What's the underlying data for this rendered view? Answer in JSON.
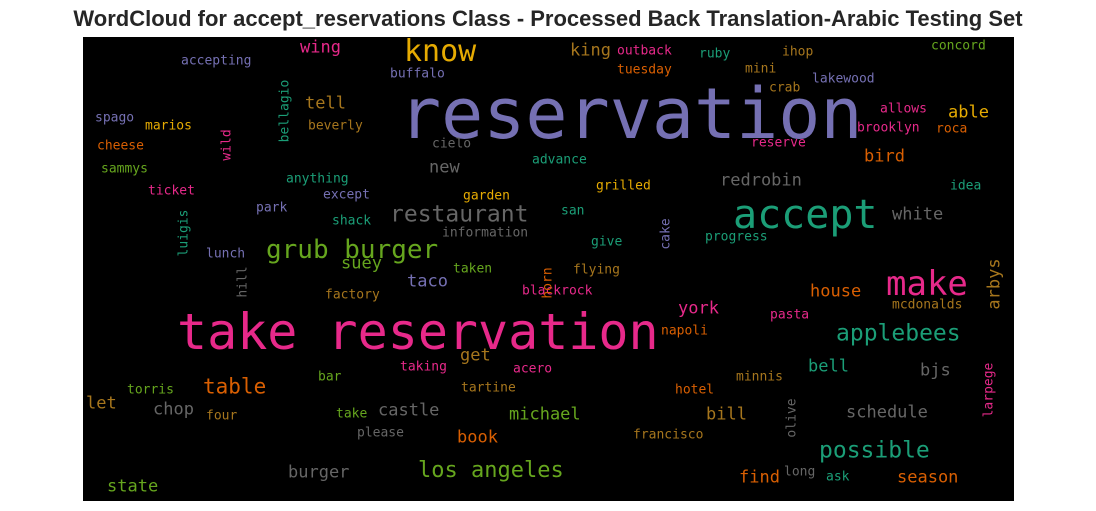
{
  "title": "WordCloud for accept_reservations Class - Processed Back Translation-Arabic Testing Set",
  "colors": {
    "purple": "#7570b3",
    "pink": "#e7298a",
    "teal": "#1b9e77",
    "orange": "#d95f02",
    "green": "#66a61e",
    "mustard": "#e6ab02",
    "brown": "#a6761d",
    "gray": "#666666"
  },
  "words": [
    {
      "text": "reservation",
      "color": "#7570b3"
    },
    {
      "text": "take reservation",
      "color": "#e7298a"
    },
    {
      "text": "accept",
      "color": "#1b9e77"
    },
    {
      "text": "make",
      "color": "#e7298a"
    },
    {
      "text": "know",
      "color": "#e6ab02"
    },
    {
      "text": "grub burger",
      "color": "#66a61e"
    },
    {
      "text": "restaurant",
      "color": "#666666"
    },
    {
      "text": "applebees",
      "color": "#1b9e77"
    },
    {
      "text": "possible",
      "color": "#1b9e77"
    },
    {
      "text": "los angeles",
      "color": "#66a61e"
    },
    {
      "text": "table",
      "color": "#d95f02"
    },
    {
      "text": "wing",
      "color": "#e7298a"
    },
    {
      "text": "tell",
      "color": "#a6761d"
    },
    {
      "text": "king",
      "color": "#a6761d"
    },
    {
      "text": "able",
      "color": "#e6ab02"
    },
    {
      "text": "bird",
      "color": "#d95f02"
    },
    {
      "text": "new",
      "color": "#666666"
    },
    {
      "text": "redrobin",
      "color": "#666666"
    },
    {
      "text": "white",
      "color": "#666666"
    },
    {
      "text": "suey",
      "color": "#66a61e"
    },
    {
      "text": "taco",
      "color": "#7570b3"
    },
    {
      "text": "house",
      "color": "#d95f02"
    },
    {
      "text": "york",
      "color": "#e7298a"
    },
    {
      "text": "get",
      "color": "#a6761d"
    },
    {
      "text": "bell",
      "color": "#1b9e77"
    },
    {
      "text": "bjs",
      "color": "#666666"
    },
    {
      "text": "chop",
      "color": "#666666"
    },
    {
      "text": "castle",
      "color": "#666666"
    },
    {
      "text": "michael",
      "color": "#66a61e"
    },
    {
      "text": "bill",
      "color": "#a6761d"
    },
    {
      "text": "schedule",
      "color": "#666666"
    },
    {
      "text": "book",
      "color": "#d95f02"
    },
    {
      "text": "burger",
      "color": "#666666"
    },
    {
      "text": "find",
      "color": "#d95f02"
    },
    {
      "text": "season",
      "color": "#d95f02"
    },
    {
      "text": "state",
      "color": "#66a61e"
    },
    {
      "text": "let",
      "color": "#a6761d"
    },
    {
      "text": "accepting",
      "color": "#7570b3"
    },
    {
      "text": "buffalo",
      "color": "#7570b3"
    },
    {
      "text": "outback",
      "color": "#e7298a"
    },
    {
      "text": "tuesday",
      "color": "#d95f02"
    },
    {
      "text": "ruby",
      "color": "#1b9e77"
    },
    {
      "text": "ihop",
      "color": "#a6761d"
    },
    {
      "text": "concord",
      "color": "#66a61e"
    },
    {
      "text": "mini",
      "color": "#a6761d"
    },
    {
      "text": "lakewood",
      "color": "#7570b3"
    },
    {
      "text": "crab",
      "color": "#a6761d"
    },
    {
      "text": "allows",
      "color": "#e7298a"
    },
    {
      "text": "spago",
      "color": "#7570b3"
    },
    {
      "text": "marios",
      "color": "#e6ab02"
    },
    {
      "text": "beverly",
      "color": "#a6761d"
    },
    {
      "text": "brooklyn",
      "color": "#e7298a"
    },
    {
      "text": "roca",
      "color": "#d95f02"
    },
    {
      "text": "cheese",
      "color": "#d95f02"
    },
    {
      "text": "cielo",
      "color": "#666666"
    },
    {
      "text": "reserve",
      "color": "#e7298a"
    },
    {
      "text": "sammys",
      "color": "#66a61e"
    },
    {
      "text": "advance",
      "color": "#1b9e77"
    },
    {
      "text": "ticket",
      "color": "#e7298a"
    },
    {
      "text": "anything",
      "color": "#1b9e77"
    },
    {
      "text": "except",
      "color": "#7570b3"
    },
    {
      "text": "garden",
      "color": "#e6ab02"
    },
    {
      "text": "grilled",
      "color": "#e6ab02"
    },
    {
      "text": "idea",
      "color": "#1b9e77"
    },
    {
      "text": "park",
      "color": "#7570b3"
    },
    {
      "text": "shack",
      "color": "#1b9e77"
    },
    {
      "text": "san",
      "color": "#1b9e77"
    },
    {
      "text": "information",
      "color": "#666666"
    },
    {
      "text": "progress",
      "color": "#1b9e77"
    },
    {
      "text": "lunch",
      "color": "#7570b3"
    },
    {
      "text": "give",
      "color": "#1b9e77"
    },
    {
      "text": "taken",
      "color": "#66a61e"
    },
    {
      "text": "flying",
      "color": "#a6761d"
    },
    {
      "text": "factory",
      "color": "#a6761d"
    },
    {
      "text": "blackrock",
      "color": "#e7298a"
    },
    {
      "text": "mcdonalds",
      "color": "#a6761d"
    },
    {
      "text": "pasta",
      "color": "#e7298a"
    },
    {
      "text": "napoli",
      "color": "#d95f02"
    },
    {
      "text": "taking",
      "color": "#e7298a"
    },
    {
      "text": "acero",
      "color": "#e7298a"
    },
    {
      "text": "torris",
      "color": "#66a61e"
    },
    {
      "text": "bar",
      "color": "#66a61e"
    },
    {
      "text": "tartine",
      "color": "#a6761d"
    },
    {
      "text": "hotel",
      "color": "#d95f02"
    },
    {
      "text": "minnis",
      "color": "#a6761d"
    },
    {
      "text": "four",
      "color": "#a6761d"
    },
    {
      "text": "take",
      "color": "#66a61e"
    },
    {
      "text": "please",
      "color": "#666666"
    },
    {
      "text": "francisco",
      "color": "#a6761d"
    },
    {
      "text": "long",
      "color": "#666666"
    },
    {
      "text": "ask",
      "color": "#1b9e77"
    }
  ],
  "vertical_words": [
    {
      "text": "bellagio",
      "color": "#1b9e77"
    },
    {
      "text": "wild",
      "color": "#e7298a"
    },
    {
      "text": "luigis",
      "color": "#1b9e77"
    },
    {
      "text": "cake",
      "color": "#7570b3"
    },
    {
      "text": "hill",
      "color": "#666666"
    },
    {
      "text": "horn",
      "color": "#d95f02"
    },
    {
      "text": "arbys",
      "color": "#a6761d"
    },
    {
      "text": "olive",
      "color": "#666666"
    },
    {
      "text": "larpege",
      "color": "#e7298a"
    }
  ]
}
